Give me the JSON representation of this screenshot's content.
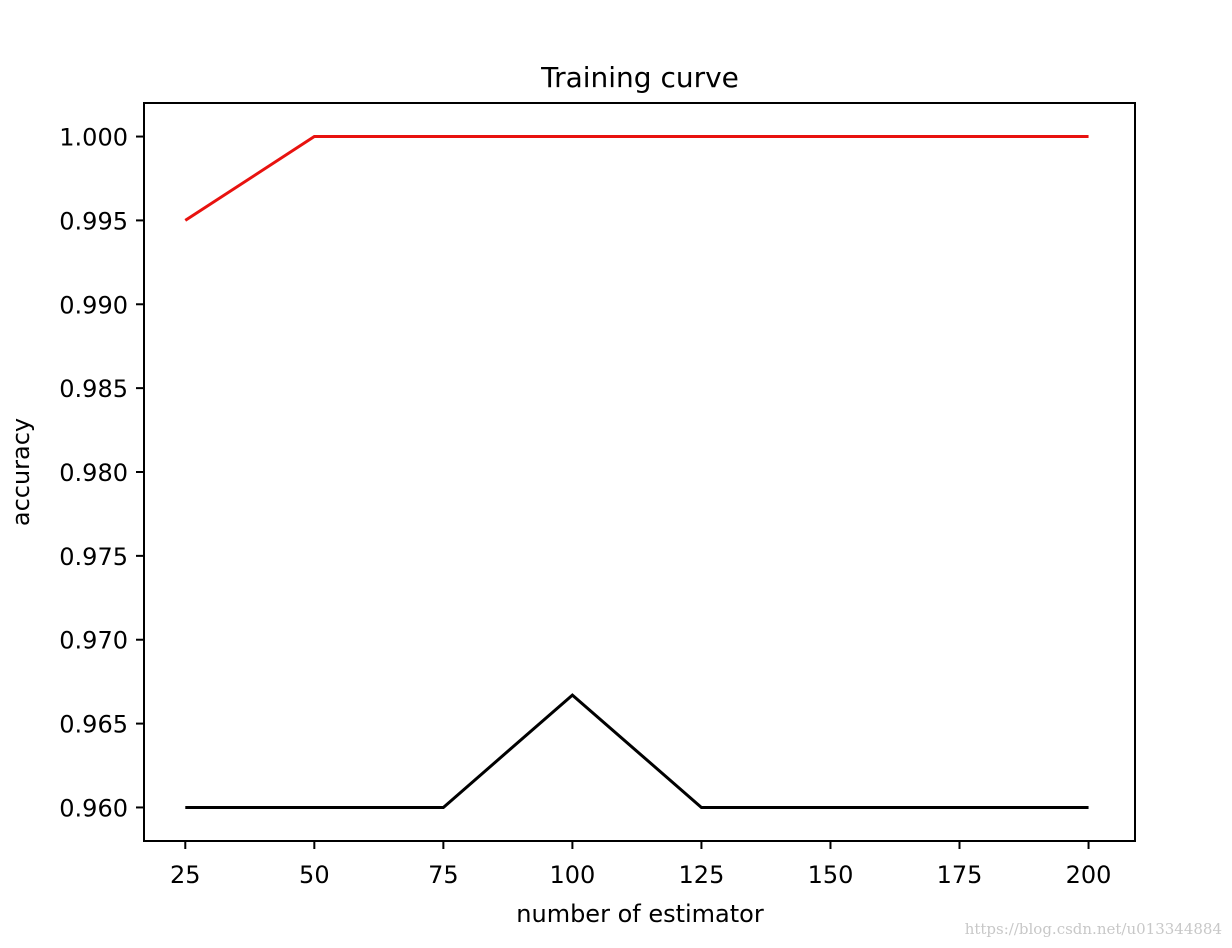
{
  "chart_data": {
    "type": "line",
    "title": "Training curve",
    "xlabel": "number of estimator",
    "ylabel": "accuracy",
    "x": [
      25,
      50,
      75,
      100,
      125,
      150,
      175,
      200
    ],
    "xlim": [
      17,
      209
    ],
    "ylim": [
      0.958,
      1.002
    ],
    "xticks": [
      25,
      50,
      75,
      100,
      125,
      150,
      175,
      200
    ],
    "xtick_labels": [
      "25",
      "50",
      "75",
      "100",
      "125",
      "150",
      "175",
      "200"
    ],
    "yticks": [
      0.96,
      0.965,
      0.97,
      0.975,
      0.98,
      0.985,
      0.99,
      0.995,
      1.0
    ],
    "ytick_labels": [
      "0.960",
      "0.965",
      "0.970",
      "0.975",
      "0.980",
      "0.985",
      "0.990",
      "0.995",
      "1.000"
    ],
    "grid": false,
    "series": [
      {
        "color": "#e8120f",
        "values": [
          0.995,
          1.0,
          1.0,
          1.0,
          1.0,
          1.0,
          1.0,
          1.0
        ]
      },
      {
        "color": "#000000",
        "values": [
          0.96,
          0.96,
          0.96,
          0.9667,
          0.96,
          0.96,
          0.96,
          0.96
        ]
      }
    ]
  },
  "watermark": "https://blog.csdn.net/u013344884"
}
